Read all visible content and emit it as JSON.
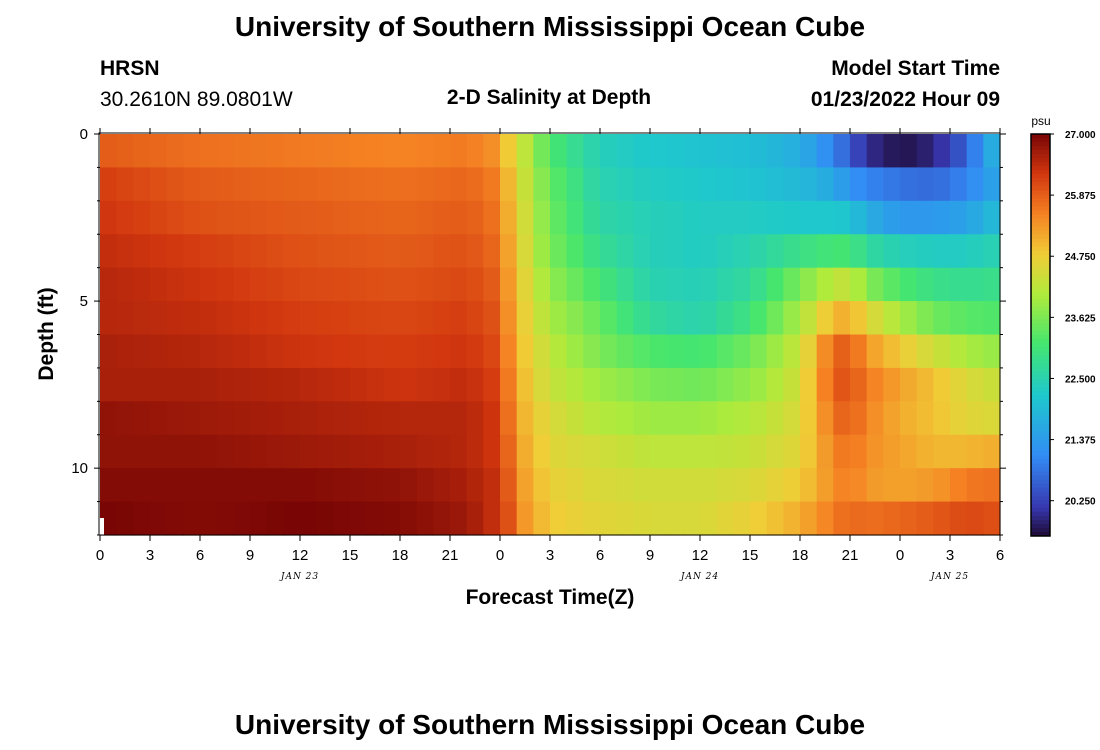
{
  "header": {
    "title": "University of Southern Mississippi Ocean Cube",
    "station_name": "HRSN",
    "station_coords": "30.2610N  89.0801W",
    "plot_title": "2-D Salinity at Depth",
    "model_start_label": "Model Start Time",
    "model_start_value": "01/23/2022 Hour 09"
  },
  "footer": {
    "title": "University of Southern Mississippi Ocean Cube"
  },
  "chart_data": {
    "type": "heatmap",
    "title": "2-D Salinity at Depth",
    "xlabel": "Forecast Time(Z)",
    "ylabel": "Depth (ft)",
    "x_range_hours": [
      0,
      54
    ],
    "y_range_ft": [
      0,
      12
    ],
    "y_ticks": [
      {
        "value": 0,
        "label": "0"
      },
      {
        "value": 5,
        "label": "5"
      },
      {
        "value": 10,
        "label": "10"
      }
    ],
    "x_ticks": [
      {
        "value": 0,
        "label": "0"
      },
      {
        "value": 3,
        "label": "3"
      },
      {
        "value": 6,
        "label": "6"
      },
      {
        "value": 9,
        "label": "9"
      },
      {
        "value": 12,
        "label": "12"
      },
      {
        "value": 15,
        "label": "15"
      },
      {
        "value": 18,
        "label": "18"
      },
      {
        "value": 21,
        "label": "21"
      },
      {
        "value": 24,
        "label": "0"
      },
      {
        "value": 27,
        "label": "3"
      },
      {
        "value": 30,
        "label": "6"
      },
      {
        "value": 33,
        "label": "9"
      },
      {
        "value": 36,
        "label": "12"
      },
      {
        "value": 39,
        "label": "15"
      },
      {
        "value": 42,
        "label": "18"
      },
      {
        "value": 45,
        "label": "21"
      },
      {
        "value": 48,
        "label": "0"
      },
      {
        "value": 51,
        "label": "3"
      },
      {
        "value": 54,
        "label": "6"
      }
    ],
    "date_labels": [
      {
        "value": 12,
        "label": "JAN 23"
      },
      {
        "value": 36,
        "label": "JAN 24"
      },
      {
        "value": 51,
        "label": "JAN 25"
      }
    ],
    "colorbar": {
      "unit": "psu",
      "min": 19.6,
      "max": 27.0,
      "tick_labels": [
        {
          "value": 27.0,
          "label": "27.000"
        },
        {
          "value": 25.875,
          "label": "25.875"
        },
        {
          "value": 24.75,
          "label": "24.750"
        },
        {
          "value": 23.625,
          "label": "23.625"
        },
        {
          "value": 22.5,
          "label": "22.500"
        },
        {
          "value": 21.375,
          "label": "21.375"
        },
        {
          "value": 20.25,
          "label": "20.250"
        }
      ]
    },
    "layer_depths_ft": [
      0.5,
      1.5,
      2.5,
      3.5,
      4.5,
      5.5,
      6.5,
      7.5,
      8.5,
      9.5,
      10.5,
      11.5
    ],
    "control_hours": [
      0,
      6,
      12,
      18,
      22,
      23.5,
      24.5,
      25.5,
      27,
      30,
      33,
      36,
      39,
      42,
      44,
      45,
      46,
      48,
      50,
      52,
      54
    ],
    "salinity_psu": [
      [
        25.9,
        25.7,
        25.6,
        25.5,
        25.6,
        25.4,
        24.8,
        24.2,
        23.2,
        22.4,
        22.2,
        22.1,
        22.0,
        21.7,
        21.0,
        20.5,
        20.0,
        19.7,
        19.9,
        20.6,
        22.0
      ],
      [
        26.2,
        25.9,
        25.8,
        25.7,
        25.8,
        25.6,
        25.0,
        24.3,
        23.4,
        22.5,
        22.3,
        22.2,
        22.1,
        21.9,
        21.6,
        21.2,
        21.0,
        20.8,
        20.7,
        21.0,
        21.6
      ],
      [
        26.3,
        26.0,
        25.9,
        25.8,
        25.9,
        25.7,
        25.1,
        24.4,
        23.5,
        22.6,
        22.4,
        22.3,
        22.3,
        22.2,
        22.2,
        22.1,
        21.7,
        21.3,
        21.3,
        21.5,
        22.0
      ],
      [
        26.4,
        26.2,
        26.0,
        25.9,
        26.0,
        25.8,
        25.2,
        24.5,
        23.6,
        22.8,
        22.4,
        22.3,
        22.5,
        22.9,
        23.1,
        23.1,
        22.7,
        22.4,
        22.3,
        22.3,
        22.5
      ],
      [
        26.5,
        26.3,
        26.1,
        26.0,
        26.1,
        25.9,
        25.3,
        24.6,
        23.8,
        23.1,
        22.5,
        22.4,
        22.7,
        23.6,
        24.2,
        24.3,
        23.7,
        23.2,
        22.9,
        22.8,
        22.9
      ],
      [
        26.5,
        26.4,
        26.2,
        26.1,
        26.2,
        26.0,
        25.4,
        24.7,
        24.0,
        23.4,
        22.7,
        22.5,
        23.0,
        24.0,
        25.0,
        25.1,
        24.6,
        24.0,
        23.5,
        23.3,
        23.2
      ],
      [
        26.6,
        26.5,
        26.3,
        26.2,
        26.3,
        26.1,
        25.5,
        24.8,
        24.2,
        23.6,
        23.2,
        23.1,
        23.5,
        24.3,
        25.8,
        25.9,
        25.3,
        24.8,
        24.4,
        24.0,
        23.8
      ],
      [
        26.6,
        26.6,
        26.5,
        26.3,
        26.4,
        26.2,
        25.6,
        24.9,
        24.3,
        23.9,
        23.6,
        23.5,
        23.8,
        24.4,
        25.9,
        26.0,
        25.6,
        25.2,
        24.9,
        24.5,
        24.3
      ],
      [
        26.8,
        26.7,
        26.6,
        26.5,
        26.5,
        26.3,
        25.7,
        25.0,
        24.5,
        24.1,
        23.9,
        23.9,
        24.1,
        24.5,
        25.7,
        25.9,
        25.5,
        25.1,
        24.9,
        24.6,
        24.5
      ],
      [
        26.8,
        26.8,
        26.7,
        26.6,
        26.5,
        26.3,
        25.8,
        25.1,
        24.6,
        24.4,
        24.2,
        24.2,
        24.3,
        24.6,
        25.5,
        25.7,
        25.4,
        25.2,
        25.0,
        25.0,
        25.1
      ],
      [
        26.9,
        26.9,
        26.9,
        26.8,
        26.6,
        26.4,
        25.9,
        25.2,
        24.7,
        24.5,
        24.4,
        24.4,
        24.5,
        24.8,
        25.4,
        25.6,
        25.3,
        25.2,
        25.3,
        25.6,
        25.7
      ],
      [
        27.0,
        26.9,
        27.0,
        26.9,
        26.7,
        26.4,
        26.0,
        25.3,
        24.8,
        24.6,
        24.5,
        24.5,
        24.7,
        25.1,
        25.6,
        25.8,
        25.7,
        25.8,
        25.9,
        26.1,
        26.0
      ]
    ]
  }
}
